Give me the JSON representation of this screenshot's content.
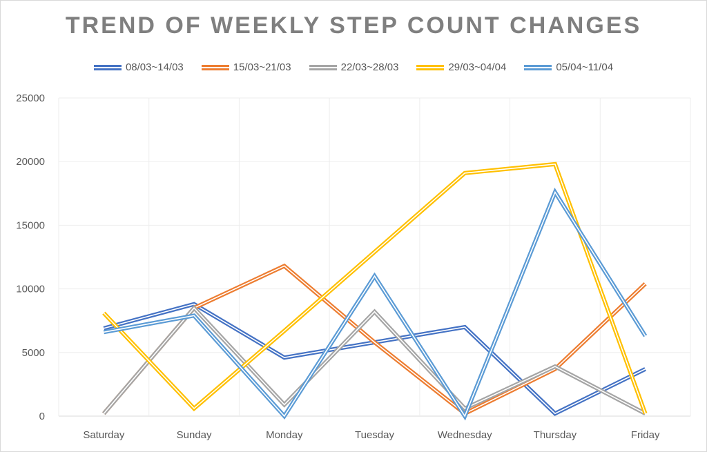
{
  "chart_data": {
    "type": "line",
    "title": "TREND OF WEEKLY STEP COUNT CHANGES",
    "xlabel": "",
    "ylabel": "",
    "categories": [
      "Saturday",
      "Sunday",
      "Monday",
      "Tuesday",
      "Wednesday",
      "Thursday",
      "Friday"
    ],
    "ylim": [
      0,
      25000
    ],
    "yticks": [
      "0",
      "5000",
      "10000",
      "15000",
      "20000",
      "25000"
    ],
    "grid": true,
    "legend_position": "top",
    "series": [
      {
        "name": "08/03~14/03",
        "color": "#4472c4",
        "values": [
          6900,
          8800,
          4600,
          5800,
          7000,
          200,
          3700
        ]
      },
      {
        "name": "15/03~21/03",
        "color": "#ed7d31",
        "values": [
          200,
          8500,
          11800,
          5800,
          200,
          3700,
          10400
        ]
      },
      {
        "name": "22/03~28/03",
        "color": "#a5a5a5",
        "values": [
          200,
          8500,
          900,
          8200,
          600,
          3900,
          200
        ]
      },
      {
        "name": "29/03~04/04",
        "color": "#ffc000",
        "values": [
          8100,
          600,
          6700,
          12900,
          19100,
          19800,
          200
        ]
      },
      {
        "name": "05/04~11/04",
        "color": "#5b9bd5",
        "values": [
          6600,
          7900,
          0,
          11000,
          0,
          17600,
          6300
        ]
      }
    ]
  }
}
